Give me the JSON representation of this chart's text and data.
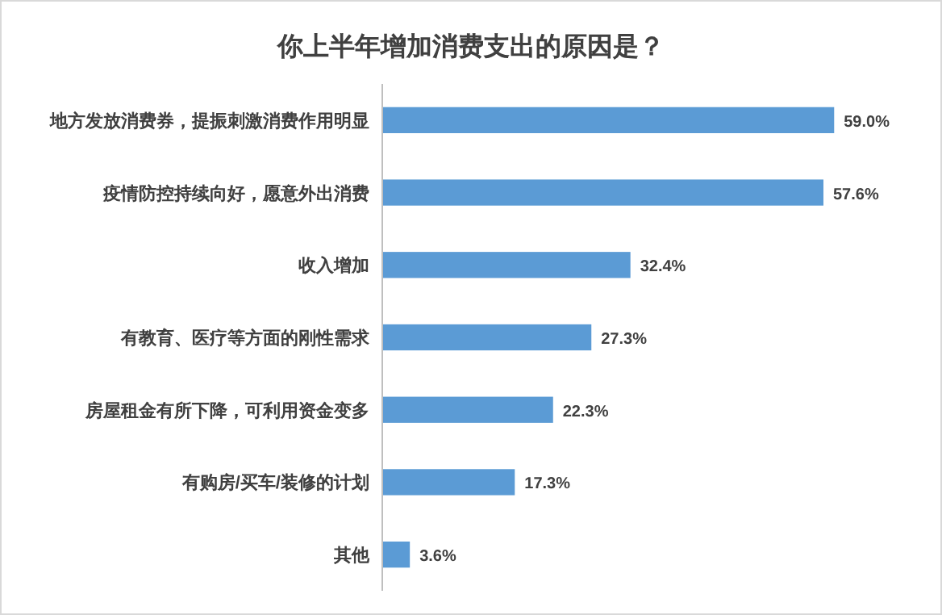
{
  "chart_data": {
    "type": "bar",
    "orientation": "horizontal",
    "title": "你上半年增加消费支出的原因是？",
    "categories": [
      "地方发放消费券，提振刺激消费作用明显",
      "疫情防控持续向好，愿意外出消费",
      "收入增加",
      "有教育、医疗等方面的刚性需求",
      "房屋租金有所下降，可利用资金变多",
      "有购房/买车/装修的计划",
      "其他"
    ],
    "values": [
      59.0,
      57.6,
      32.4,
      27.3,
      22.3,
      17.3,
      3.6
    ],
    "value_labels": [
      "59.0%",
      "57.6%",
      "32.4%",
      "27.3%",
      "22.3%",
      "17.3%",
      "3.6%"
    ],
    "color": "#5b9bd5"
  }
}
